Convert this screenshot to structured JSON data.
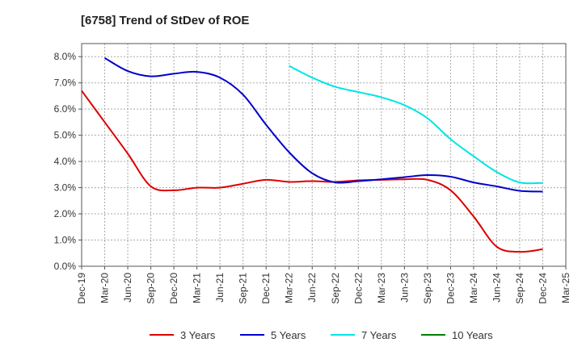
{
  "chart_data": {
    "type": "line",
    "title": "[6758]  Trend of StDev of ROE",
    "xlabel": "",
    "ylabel": "",
    "ylim": [
      0,
      8.5
    ],
    "y_ticks": [
      "0.0%",
      "1.0%",
      "2.0%",
      "3.0%",
      "4.0%",
      "5.0%",
      "6.0%",
      "7.0%",
      "8.0%"
    ],
    "categories": [
      "Dec-19",
      "Mar-20",
      "Jun-20",
      "Sep-20",
      "Dec-20",
      "Mar-21",
      "Jun-21",
      "Sep-21",
      "Dec-21",
      "Mar-22",
      "Jun-22",
      "Sep-22",
      "Dec-22",
      "Mar-23",
      "Jun-23",
      "Sep-23",
      "Dec-23",
      "Mar-24",
      "Jun-24",
      "Sep-24",
      "Dec-24",
      "Mar-25"
    ],
    "grid": true,
    "legend_position": "bottom",
    "series": [
      {
        "name": "3 Years",
        "color": "#dd0000",
        "values": [
          6.7,
          5.5,
          4.3,
          3.05,
          2.9,
          3.0,
          3.0,
          3.15,
          3.3,
          3.22,
          3.25,
          3.22,
          3.28,
          3.3,
          3.32,
          3.3,
          2.9,
          1.9,
          0.75,
          0.55,
          0.65,
          null
        ]
      },
      {
        "name": "5 Years",
        "color": "#0000cc",
        "values": [
          null,
          7.95,
          7.45,
          7.25,
          7.35,
          7.42,
          7.2,
          6.55,
          5.4,
          4.35,
          3.55,
          3.2,
          3.25,
          3.32,
          3.4,
          3.48,
          3.42,
          3.2,
          3.05,
          2.88,
          2.85,
          null
        ]
      },
      {
        "name": "7 Years",
        "color": "#00e5e5",
        "values": [
          null,
          null,
          null,
          null,
          null,
          null,
          null,
          null,
          null,
          7.65,
          7.2,
          6.85,
          6.65,
          6.45,
          6.15,
          5.65,
          4.85,
          4.2,
          3.6,
          3.2,
          3.18,
          null
        ]
      },
      {
        "name": "10 Years",
        "color": "#008000",
        "values": [
          null,
          null,
          null,
          null,
          null,
          null,
          null,
          null,
          null,
          null,
          null,
          null,
          null,
          null,
          null,
          null,
          null,
          null,
          null,
          null,
          null,
          null
        ]
      }
    ]
  }
}
